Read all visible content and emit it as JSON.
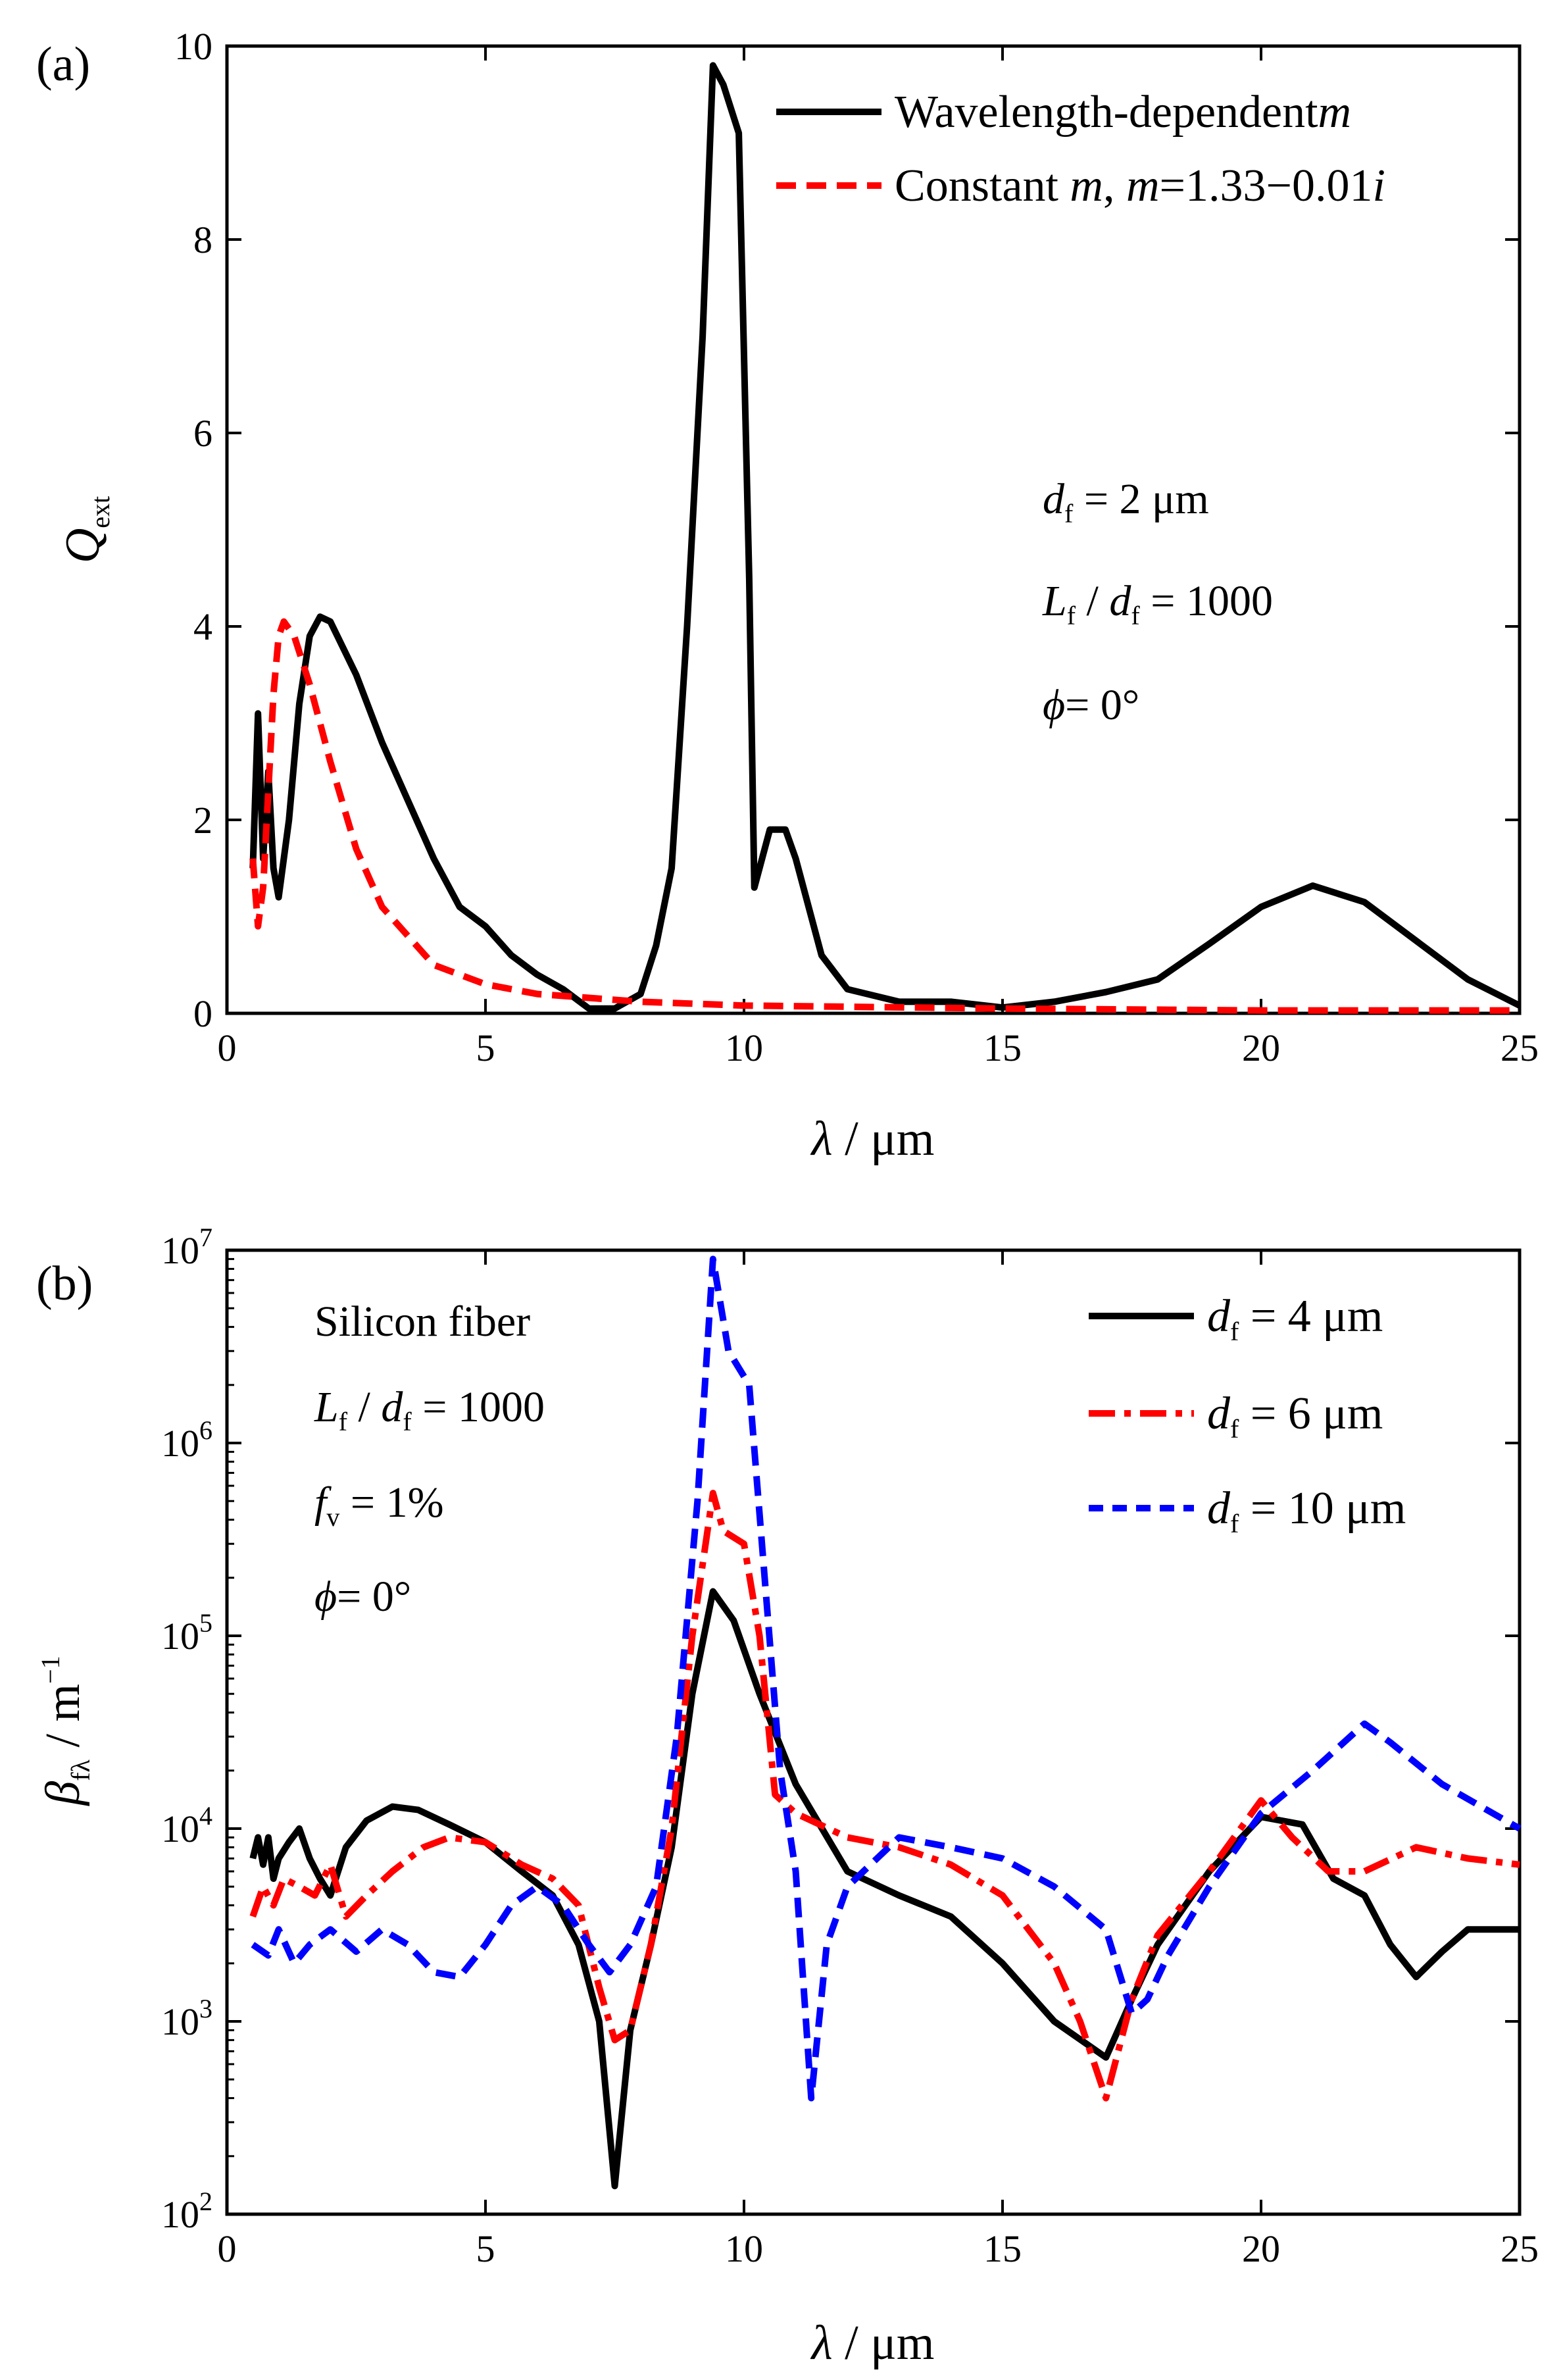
{
  "chart_data": [
    {
      "panel_label": "(a)",
      "type": "line",
      "xlabel_sym": "λ",
      "xlabel_unit": " / μm",
      "ylabel_sym": "Q",
      "ylabel_sub": "ext",
      "xlim": [
        0,
        25
      ],
      "ylim": [
        0,
        10
      ],
      "xticks": [
        0,
        5,
        10,
        15,
        20,
        25
      ],
      "yticks": [
        0,
        2,
        4,
        6,
        8,
        10
      ],
      "annotations": {
        "df_sym": "d",
        "df_sub": "f",
        "df_val": " = 2 μm",
        "ratio_sym1": "L",
        "ratio_sub1": "f",
        "ratio_mid": " / ",
        "ratio_sym2": "d",
        "ratio_sub2": "f",
        "ratio_val": " = 1000",
        "phi_sym": "ϕ",
        "phi_val": "= 0°"
      },
      "legend": [
        {
          "text": "Wavelength-dependent",
          "ital": "m",
          "extra": ""
        },
        {
          "text": "Constant ",
          "ital": "m",
          "extra": ", ",
          "ital2": "m",
          "extra2": "=1.33−0.01",
          "ital3": "i"
        }
      ],
      "series": [
        {
          "name": "Wavelength-dependent m",
          "color": "#000000",
          "dash": "solid",
          "points": [
            [
              0.5,
              1.5
            ],
            [
              0.6,
              3.1
            ],
            [
              0.7,
              1.6
            ],
            [
              0.8,
              2.5
            ],
            [
              0.9,
              1.5
            ],
            [
              1.0,
              1.2
            ],
            [
              1.2,
              2.0
            ],
            [
              1.4,
              3.2
            ],
            [
              1.6,
              3.9
            ],
            [
              1.8,
              4.1
            ],
            [
              2.0,
              4.05
            ],
            [
              2.5,
              3.5
            ],
            [
              3.0,
              2.8
            ],
            [
              3.5,
              2.2
            ],
            [
              4.0,
              1.6
            ],
            [
              4.5,
              1.1
            ],
            [
              5.0,
              0.9
            ],
            [
              5.5,
              0.6
            ],
            [
              6.0,
              0.4
            ],
            [
              6.5,
              0.25
            ],
            [
              7.0,
              0.05
            ],
            [
              7.5,
              0.05
            ],
            [
              8.0,
              0.2
            ],
            [
              8.3,
              0.7
            ],
            [
              8.6,
              1.5
            ],
            [
              8.9,
              4.0
            ],
            [
              9.2,
              7.0
            ],
            [
              9.4,
              9.8
            ],
            [
              9.6,
              9.6
            ],
            [
              9.9,
              9.1
            ],
            [
              10.1,
              4.5
            ],
            [
              10.2,
              1.3
            ],
            [
              10.5,
              1.9
            ],
            [
              10.8,
              1.9
            ],
            [
              11.0,
              1.6
            ],
            [
              11.5,
              0.6
            ],
            [
              12.0,
              0.25
            ],
            [
              13.0,
              0.12
            ],
            [
              14.0,
              0.12
            ],
            [
              15.0,
              0.06
            ],
            [
              16.0,
              0.12
            ],
            [
              17.0,
              0.22
            ],
            [
              18.0,
              0.35
            ],
            [
              19.0,
              0.72
            ],
            [
              20.0,
              1.1
            ],
            [
              21.0,
              1.32
            ],
            [
              22.0,
              1.15
            ],
            [
              23.0,
              0.75
            ],
            [
              24.0,
              0.35
            ],
            [
              25.0,
              0.08
            ]
          ]
        },
        {
          "name": "Constant m, m=1.33−0.01i",
          "color": "#ff0000",
          "dash": "dash",
          "points": [
            [
              0.5,
              1.6
            ],
            [
              0.6,
              0.9
            ],
            [
              0.7,
              1.3
            ],
            [
              0.8,
              2.3
            ],
            [
              0.9,
              3.3
            ],
            [
              1.0,
              3.9
            ],
            [
              1.1,
              4.05
            ],
            [
              1.3,
              3.9
            ],
            [
              1.6,
              3.4
            ],
            [
              2.0,
              2.6
            ],
            [
              2.5,
              1.7
            ],
            [
              3.0,
              1.1
            ],
            [
              4.0,
              0.5
            ],
            [
              5.0,
              0.3
            ],
            [
              6.0,
              0.2
            ],
            [
              8.0,
              0.12
            ],
            [
              10.0,
              0.08
            ],
            [
              15.0,
              0.05
            ],
            [
              20.0,
              0.03
            ],
            [
              25.0,
              0.03
            ]
          ]
        }
      ]
    },
    {
      "panel_label": "(b)",
      "type": "line",
      "yscale": "log",
      "xlabel_sym": "λ",
      "xlabel_unit": " / μm",
      "ylabel_sym": "β",
      "ylabel_sub": "fλ",
      "ylabel_unit": " / m",
      "ylabel_sup": "−1",
      "xlim": [
        0,
        25
      ],
      "ylim": [
        100,
        10000000
      ],
      "xticks": [
        0,
        5,
        10,
        15,
        20,
        25
      ],
      "yticks": [
        {
          "base": "10",
          "exp": "2",
          "value": 100
        },
        {
          "base": "10",
          "exp": "3",
          "value": 1000
        },
        {
          "base": "10",
          "exp": "4",
          "value": 10000
        },
        {
          "base": "10",
          "exp": "5",
          "value": 100000
        },
        {
          "base": "10",
          "exp": "6",
          "value": 1000000
        },
        {
          "base": "10",
          "exp": "7",
          "value": 10000000
        }
      ],
      "annotations": {
        "material": "Silicon fiber",
        "ratio_sym1": "L",
        "ratio_sub1": "f",
        "ratio_mid": " / ",
        "ratio_sym2": "d",
        "ratio_sub2": "f",
        "ratio_val": " = 1000",
        "fv_sym": "f",
        "fv_sub": "v",
        "fv_val": " = 1%",
        "phi_sym": "ϕ",
        "phi_val": "= 0°"
      },
      "legend": [
        {
          "sym": "d",
          "sub": "f",
          "text": " = 4 μm"
        },
        {
          "sym": "d",
          "sub": "f",
          "text": " = 6 μm"
        },
        {
          "sym": "d",
          "sub": "f",
          "text": " = 10 μm"
        }
      ],
      "series": [
        {
          "name": "df = 4 μm",
          "color": "#000000",
          "dash": "solid",
          "points": [
            [
              0.5,
              7000
            ],
            [
              0.6,
              9000
            ],
            [
              0.7,
              6500
            ],
            [
              0.8,
              9000
            ],
            [
              0.9,
              5500
            ],
            [
              1.0,
              7000
            ],
            [
              1.2,
              8500
            ],
            [
              1.4,
              10000
            ],
            [
              1.6,
              7000
            ],
            [
              1.8,
              5500
            ],
            [
              2.0,
              4500
            ],
            [
              2.3,
              8000
            ],
            [
              2.7,
              11000
            ],
            [
              3.2,
              13000
            ],
            [
              3.7,
              12500
            ],
            [
              4.3,
              10500
            ],
            [
              5.0,
              8500
            ],
            [
              5.7,
              6000
            ],
            [
              6.3,
              4500
            ],
            [
              6.8,
              2500
            ],
            [
              7.2,
              1000
            ],
            [
              7.5,
              140
            ],
            [
              7.8,
              900
            ],
            [
              8.2,
              2500
            ],
            [
              8.6,
              8000
            ],
            [
              9.0,
              50000
            ],
            [
              9.4,
              170000
            ],
            [
              9.8,
              120000
            ],
            [
              10.3,
              50000
            ],
            [
              11.0,
              17000
            ],
            [
              12.0,
              6000
            ],
            [
              13.0,
              4500
            ],
            [
              14.0,
              3500
            ],
            [
              15.0,
              2000
            ],
            [
              16.0,
              1000
            ],
            [
              17.0,
              650
            ],
            [
              17.5,
              1300
            ],
            [
              18.0,
              2500
            ],
            [
              19.0,
              6000
            ],
            [
              20.0,
              11500
            ],
            [
              20.8,
              10500
            ],
            [
              21.4,
              5500
            ],
            [
              22.0,
              4500
            ],
            [
              22.5,
              2500
            ],
            [
              23.0,
              1700
            ],
            [
              23.5,
              2300
            ],
            [
              24.0,
              3000
            ],
            [
              25.0,
              3000
            ]
          ]
        },
        {
          "name": "df = 6 μm",
          "color": "#ff0000",
          "dash": "dashdot",
          "points": [
            [
              0.5,
              3500
            ],
            [
              0.7,
              5000
            ],
            [
              0.9,
              4000
            ],
            [
              1.1,
              5500
            ],
            [
              1.4,
              5000
            ],
            [
              1.7,
              4500
            ],
            [
              2.0,
              6500
            ],
            [
              2.3,
              3500
            ],
            [
              2.7,
              4500
            ],
            [
              3.2,
              6000
            ],
            [
              3.8,
              8000
            ],
            [
              4.3,
              9000
            ],
            [
              5.0,
              8500
            ],
            [
              5.7,
              6500
            ],
            [
              6.3,
              5500
            ],
            [
              6.8,
              4000
            ],
            [
              7.2,
              1500
            ],
            [
              7.5,
              800
            ],
            [
              7.8,
              900
            ],
            [
              8.2,
              2500
            ],
            [
              8.6,
              10000
            ],
            [
              9.0,
              100000
            ],
            [
              9.4,
              550000
            ],
            [
              9.6,
              350000
            ],
            [
              10.0,
              300000
            ],
            [
              10.3,
              100000
            ],
            [
              10.6,
              15000
            ],
            [
              11.0,
              12000
            ],
            [
              12.0,
              9000
            ],
            [
              13.0,
              8000
            ],
            [
              14.0,
              6500
            ],
            [
              15.0,
              4500
            ],
            [
              16.0,
              2000
            ],
            [
              16.5,
              1000
            ],
            [
              17.0,
              400
            ],
            [
              17.5,
              1300
            ],
            [
              18.0,
              2800
            ],
            [
              19.0,
              6000
            ],
            [
              20.0,
              14000
            ],
            [
              20.6,
              9000
            ],
            [
              21.3,
              6000
            ],
            [
              22.0,
              6000
            ],
            [
              23.0,
              8000
            ],
            [
              24.0,
              7000
            ],
            [
              25.0,
              6500
            ]
          ]
        },
        {
          "name": "df = 10 μm",
          "color": "#0000ff",
          "dash": "dash",
          "points": [
            [
              0.5,
              2500
            ],
            [
              0.8,
              2200
            ],
            [
              1.0,
              3000
            ],
            [
              1.3,
              2000
            ],
            [
              1.6,
              2500
            ],
            [
              2.0,
              3000
            ],
            [
              2.5,
              2300
            ],
            [
              3.0,
              3000
            ],
            [
              3.5,
              2500
            ],
            [
              4.0,
              1800
            ],
            [
              4.5,
              1700
            ],
            [
              5.0,
              2500
            ],
            [
              5.5,
              4000
            ],
            [
              6.0,
              5000
            ],
            [
              6.5,
              4000
            ],
            [
              7.0,
              2500
            ],
            [
              7.4,
              1800
            ],
            [
              7.8,
              2500
            ],
            [
              8.3,
              5000
            ],
            [
              8.7,
              30000
            ],
            [
              9.1,
              500000
            ],
            [
              9.4,
              9000000
            ],
            [
              9.7,
              3000000
            ],
            [
              10.1,
              2000000
            ],
            [
              10.4,
              200000
            ],
            [
              10.7,
              20000
            ],
            [
              11.0,
              6000
            ],
            [
              11.3,
              400
            ],
            [
              11.6,
              2500
            ],
            [
              12.0,
              5000
            ],
            [
              13.0,
              9000
            ],
            [
              14.0,
              8000
            ],
            [
              15.0,
              7000
            ],
            [
              16.0,
              5000
            ],
            [
              17.0,
              3000
            ],
            [
              17.5,
              1100
            ],
            [
              17.8,
              1300
            ],
            [
              18.2,
              2200
            ],
            [
              19.0,
              5000
            ],
            [
              20.0,
              12000
            ],
            [
              21.0,
              20000
            ],
            [
              22.0,
              35000
            ],
            [
              22.5,
              28000
            ],
            [
              23.5,
              17000
            ],
            [
              25.0,
              10000
            ]
          ]
        }
      ]
    }
  ]
}
